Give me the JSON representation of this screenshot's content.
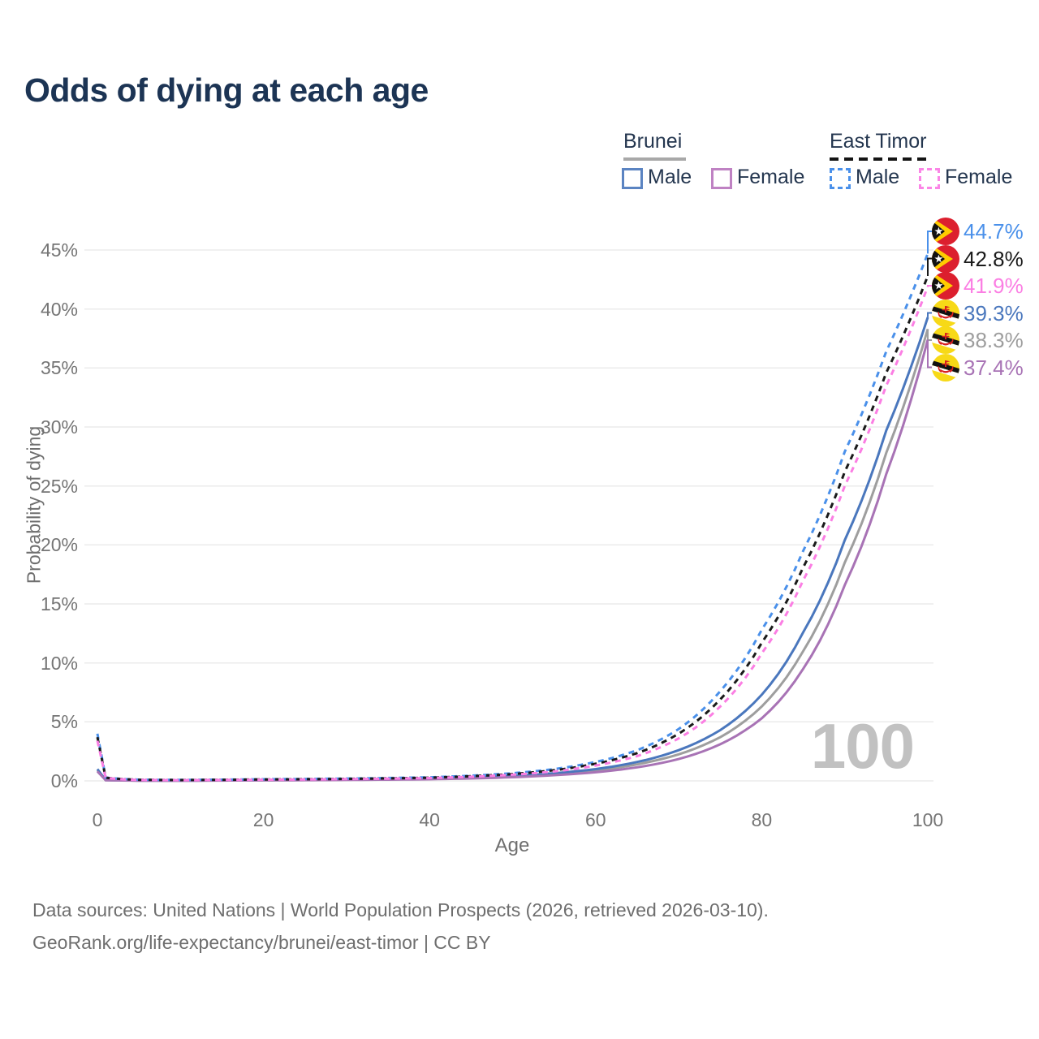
{
  "page": {
    "title": "Odds of dying at each age"
  },
  "legend": {
    "groups": [
      {
        "name": "Brunei",
        "line_style": "solid",
        "line_color": "#a8a8a8",
        "items": [
          {
            "label": "Male",
            "color": "#5b84c2"
          },
          {
            "label": "Female",
            "color": "#bf82c3"
          }
        ]
      },
      {
        "name": "East Timor",
        "line_style": "dashed",
        "line_color": "#141414",
        "items": [
          {
            "label": "Male",
            "color": "#4a90ea"
          },
          {
            "label": "Female",
            "color": "#fb85e6"
          }
        ]
      }
    ]
  },
  "chart_data": {
    "type": "line",
    "title": "Odds of dying at each age",
    "xlabel": "Age",
    "ylabel": "Probability of dying",
    "x_ticks": [
      "0",
      "20",
      "40",
      "60",
      "80",
      "100"
    ],
    "y_ticks": [
      "0%",
      "5%",
      "10%",
      "15%",
      "20%",
      "25%",
      "30%",
      "35%",
      "40%",
      "45%"
    ],
    "y_ticks_percent": [
      0,
      5,
      10,
      15,
      20,
      25,
      30,
      35,
      40,
      45
    ],
    "xlim": [
      0,
      100
    ],
    "ylim_percent": [
      0,
      47
    ],
    "grid": "horizontal",
    "legend_position": "top-right",
    "age_indicator": "100",
    "ages": [
      0,
      1,
      5,
      10,
      20,
      30,
      40,
      50,
      55,
      60,
      65,
      70,
      75,
      80,
      85,
      90,
      95,
      100
    ],
    "series": [
      {
        "name": "East Timor Male",
        "country": "East Timor",
        "sex": "Male",
        "color": "#4a90ea",
        "dashed": true,
        "flag": "east-timor",
        "end_label": "44.7%",
        "values_percent": [
          4.0,
          0.28,
          0.1,
          0.08,
          0.14,
          0.2,
          0.3,
          0.65,
          1.0,
          1.6,
          2.6,
          4.4,
          7.6,
          12.8,
          19.5,
          27.9,
          36.4,
          44.7
        ]
      },
      {
        "name": "East Timor Both sexes",
        "country": "East Timor",
        "sex": "Both",
        "color": "#1a1a1a",
        "dashed": true,
        "flag": "east-timor",
        "end_label": "42.8%",
        "values_percent": [
          3.7,
          0.26,
          0.09,
          0.07,
          0.12,
          0.17,
          0.27,
          0.58,
          0.9,
          1.45,
          2.35,
          4.0,
          6.9,
          11.7,
          18.1,
          26.2,
          34.6,
          42.8
        ]
      },
      {
        "name": "East Timor Female",
        "country": "East Timor",
        "sex": "Female",
        "color": "#fb7ee3",
        "dashed": true,
        "flag": "east-timor",
        "end_label": "41.9%",
        "values_percent": [
          3.4,
          0.24,
          0.08,
          0.065,
          0.1,
          0.15,
          0.24,
          0.52,
          0.8,
          1.3,
          2.1,
          3.6,
          6.3,
          10.8,
          17.0,
          25.0,
          33.5,
          41.9
        ]
      },
      {
        "name": "Brunei Male",
        "country": "Brunei",
        "sex": "Male",
        "color": "#4a77bd",
        "dashed": false,
        "flag": "brunei",
        "end_label": "39.3%",
        "values_percent": [
          1.0,
          0.07,
          0.03,
          0.025,
          0.07,
          0.11,
          0.19,
          0.42,
          0.65,
          1.0,
          1.6,
          2.6,
          4.3,
          7.3,
          12.6,
          20.4,
          29.7,
          39.3
        ]
      },
      {
        "name": "Brunei Both sexes",
        "country": "Brunei",
        "sex": "Both",
        "color": "#9e9e9e",
        "dashed": false,
        "flag": "brunei",
        "end_label": "38.3%",
        "values_percent": [
          0.9,
          0.06,
          0.027,
          0.022,
          0.055,
          0.095,
          0.17,
          0.37,
          0.57,
          0.88,
          1.4,
          2.25,
          3.7,
          6.3,
          11.0,
          18.5,
          27.8,
          38.3
        ]
      },
      {
        "name": "Brunei Female",
        "country": "Brunei",
        "sex": "Female",
        "color": "#a873b5",
        "dashed": false,
        "flag": "brunei",
        "end_label": "37.4%",
        "values_percent": [
          0.8,
          0.055,
          0.024,
          0.02,
          0.045,
          0.08,
          0.14,
          0.31,
          0.48,
          0.73,
          1.15,
          1.85,
          3.1,
          5.3,
          9.5,
          16.6,
          26.0,
          37.4
        ]
      }
    ]
  },
  "footer": {
    "line1": "Data sources: United Nations | World Population Prospects (2026, retrieved 2026-03-10).",
    "line2": "GeoRank.org/life-expectancy/brunei/east-timor | CC BY"
  }
}
